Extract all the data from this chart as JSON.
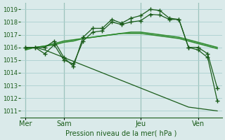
{
  "background_color": "#daeaea",
  "grid_color": "#aacfcf",
  "line_color_dark": "#1a5c1a",
  "line_color_mid": "#2d8a2d",
  "xlabel": "Pression niveau de la mer( hPa )",
  "ylim": [
    1010.5,
    1019.5
  ],
  "yticks": [
    1011,
    1012,
    1013,
    1014,
    1015,
    1016,
    1017,
    1018,
    1019
  ],
  "xtick_labels": [
    "Mer",
    "Sam",
    "Jeu",
    "Ven"
  ],
  "vline_positions": [
    0,
    4,
    12,
    18
  ],
  "n_points": 21,
  "smooth_line": [
    1015.8,
    1016.0,
    1016.1,
    1016.2,
    1016.4,
    1016.5,
    1016.7,
    1016.8,
    1016.9,
    1017.0,
    1017.1,
    1017.1,
    1017.1,
    1017.0,
    1016.9,
    1016.8,
    1016.7,
    1016.5,
    1016.3,
    1016.1,
    1015.9
  ],
  "smooth_line2": [
    1015.9,
    1016.0,
    1016.1,
    1016.3,
    1016.5,
    1016.6,
    1016.7,
    1016.8,
    1016.9,
    1017.0,
    1017.1,
    1017.2,
    1017.2,
    1017.1,
    1017.0,
    1016.9,
    1016.8,
    1016.6,
    1016.4,
    1016.2,
    1016.0
  ],
  "jagged_upper": [
    1016.0,
    1016.0,
    1015.5,
    1016.2,
    1015.0,
    1014.7,
    1016.5,
    1017.2,
    1017.3,
    1018.0,
    1017.8,
    1018.0,
    1018.1,
    1018.6,
    1018.55,
    1018.2,
    1018.2,
    1016.0,
    1016.0,
    1015.5,
    1012.8
  ],
  "jagged_upper2": [
    1016.0,
    1016.0,
    1016.0,
    1016.5,
    1015.2,
    1014.5,
    1016.8,
    1017.5,
    1017.5,
    1018.2,
    1017.9,
    1018.3,
    1018.5,
    1019.0,
    1018.9,
    1018.3,
    1018.2,
    1016.0,
    1015.8,
    1015.2,
    1011.8
  ],
  "diagonal_line": [
    1016.0,
    1016.0,
    1015.8,
    1015.5,
    1015.2,
    1014.9,
    1014.6,
    1014.3,
    1014.0,
    1013.7,
    1013.4,
    1013.1,
    1012.8,
    1012.5,
    1012.2,
    1011.9,
    1011.6,
    1011.3,
    1011.2,
    1011.1,
    1011.0
  ]
}
